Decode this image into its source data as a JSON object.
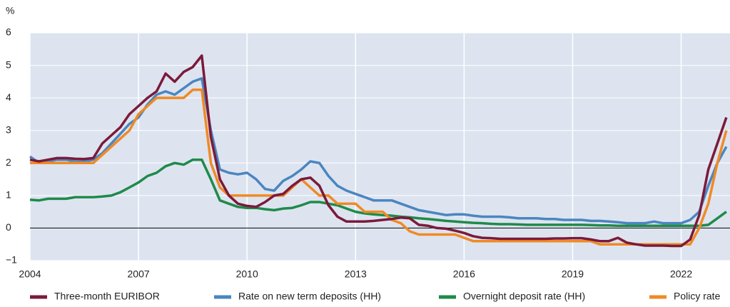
{
  "chart_data": {
    "type": "line",
    "y_label": "%",
    "x": [
      2004,
      2004.25,
      2004.5,
      2004.75,
      2005,
      2005.25,
      2005.5,
      2005.75,
      2006,
      2006.25,
      2006.5,
      2006.75,
      2007,
      2007.25,
      2007.5,
      2007.75,
      2008,
      2008.25,
      2008.5,
      2008.75,
      2009,
      2009.25,
      2009.5,
      2009.75,
      2010,
      2010.25,
      2010.5,
      2010.75,
      2011,
      2011.25,
      2011.5,
      2011.75,
      2012,
      2012.25,
      2012.5,
      2012.75,
      2013,
      2013.25,
      2013.5,
      2013.75,
      2014,
      2014.25,
      2014.5,
      2014.75,
      2015,
      2015.25,
      2015.5,
      2015.75,
      2016,
      2016.25,
      2016.5,
      2016.75,
      2017,
      2017.25,
      2017.5,
      2017.75,
      2018,
      2018.25,
      2018.5,
      2018.75,
      2019,
      2019.25,
      2019.5,
      2019.75,
      2020,
      2020.25,
      2020.5,
      2020.75,
      2021,
      2021.25,
      2021.5,
      2021.75,
      2022,
      2022.25,
      2022.5,
      2022.75,
      2023,
      2023.25
    ],
    "series": [
      {
        "name": "Three-month EURIBOR",
        "color": "#7b1a3a",
        "values": [
          2.1,
          2.05,
          2.1,
          2.15,
          2.15,
          2.13,
          2.12,
          2.15,
          2.6,
          2.85,
          3.1,
          3.5,
          3.75,
          4.0,
          4.2,
          4.75,
          4.5,
          4.8,
          4.95,
          5.3,
          2.8,
          1.5,
          1.0,
          0.75,
          0.68,
          0.65,
          0.8,
          1.0,
          1.05,
          1.3,
          1.5,
          1.55,
          1.3,
          0.7,
          0.35,
          0.2,
          0.2,
          0.2,
          0.22,
          0.25,
          0.28,
          0.32,
          0.3,
          0.1,
          0.07,
          0.0,
          -0.02,
          -0.08,
          -0.15,
          -0.25,
          -0.3,
          -0.31,
          -0.33,
          -0.33,
          -0.33,
          -0.33,
          -0.33,
          -0.33,
          -0.32,
          -0.32,
          -0.31,
          -0.31,
          -0.35,
          -0.4,
          -0.4,
          -0.3,
          -0.45,
          -0.5,
          -0.54,
          -0.54,
          -0.54,
          -0.55,
          -0.55,
          -0.35,
          0.4,
          1.8,
          2.6,
          3.4
        ]
      },
      {
        "name": "Rate on new term deposits (HH)",
        "color": "#4a86c0",
        "values": [
          2.2,
          2.0,
          2.05,
          2.1,
          2.1,
          2.05,
          2.05,
          2.1,
          2.3,
          2.6,
          2.9,
          3.2,
          3.4,
          3.8,
          4.1,
          4.2,
          4.1,
          4.3,
          4.5,
          4.6,
          3.0,
          1.8,
          1.7,
          1.65,
          1.7,
          1.5,
          1.2,
          1.15,
          1.45,
          1.6,
          1.8,
          2.05,
          2.0,
          1.6,
          1.3,
          1.15,
          1.05,
          0.95,
          0.85,
          0.85,
          0.85,
          0.75,
          0.65,
          0.55,
          0.5,
          0.45,
          0.4,
          0.42,
          0.42,
          0.38,
          0.35,
          0.35,
          0.35,
          0.33,
          0.3,
          0.3,
          0.3,
          0.28,
          0.28,
          0.25,
          0.25,
          0.25,
          0.22,
          0.22,
          0.2,
          0.18,
          0.15,
          0.15,
          0.15,
          0.2,
          0.15,
          0.15,
          0.15,
          0.25,
          0.5,
          1.3,
          2.0,
          2.5
        ]
      },
      {
        "name": "Overnight deposit rate (HH)",
        "color": "#1f8a4a",
        "values": [
          0.87,
          0.85,
          0.9,
          0.9,
          0.9,
          0.95,
          0.95,
          0.95,
          0.97,
          1.0,
          1.1,
          1.25,
          1.4,
          1.6,
          1.7,
          1.9,
          2.0,
          1.95,
          2.1,
          2.1,
          1.5,
          0.85,
          0.75,
          0.65,
          0.62,
          0.62,
          0.58,
          0.55,
          0.6,
          0.62,
          0.7,
          0.8,
          0.8,
          0.75,
          0.7,
          0.6,
          0.5,
          0.45,
          0.42,
          0.4,
          0.38,
          0.35,
          0.33,
          0.3,
          0.28,
          0.25,
          0.22,
          0.2,
          0.18,
          0.16,
          0.15,
          0.13,
          0.12,
          0.12,
          0.11,
          0.1,
          0.1,
          0.1,
          0.1,
          0.1,
          0.1,
          0.1,
          0.09,
          0.08,
          0.08,
          0.07,
          0.07,
          0.07,
          0.07,
          0.07,
          0.07,
          0.07,
          0.07,
          0.07,
          0.07,
          0.1,
          0.3,
          0.5
        ]
      },
      {
        "name": "Policy rate",
        "color": "#f08a24",
        "values": [
          2,
          2,
          2,
          2,
          2,
          2,
          2,
          2,
          2.25,
          2.5,
          2.75,
          3.0,
          3.5,
          3.75,
          4.0,
          4.0,
          4.0,
          4.0,
          4.25,
          4.25,
          2.0,
          1.25,
          1.0,
          1.0,
          1,
          1,
          1,
          1,
          1,
          1.25,
          1.5,
          1.25,
          1.0,
          1.0,
          0.75,
          0.75,
          0.75,
          0.5,
          0.5,
          0.5,
          0.25,
          0.15,
          -0.1,
          -0.2,
          -0.2,
          -0.2,
          -0.2,
          -0.2,
          -0.3,
          -0.4,
          -0.4,
          -0.4,
          -0.4,
          -0.4,
          -0.4,
          -0.4,
          -0.4,
          -0.4,
          -0.4,
          -0.4,
          -0.4,
          -0.4,
          -0.4,
          -0.5,
          -0.5,
          -0.5,
          -0.5,
          -0.5,
          -0.5,
          -0.5,
          -0.5,
          -0.5,
          -0.5,
          -0.5,
          0.0,
          0.75,
          2.0,
          3.0
        ]
      }
    ],
    "xlim": [
      2004,
      2023.35
    ],
    "xticks": [
      2004,
      2007,
      2010,
      2013,
      2016,
      2019,
      2022
    ],
    "ylim": [
      -1,
      6
    ],
    "yticks": [
      {
        "value": -1,
        "label": "−1"
      },
      0,
      1,
      2,
      3,
      4,
      5,
      6
    ],
    "grid": true
  }
}
